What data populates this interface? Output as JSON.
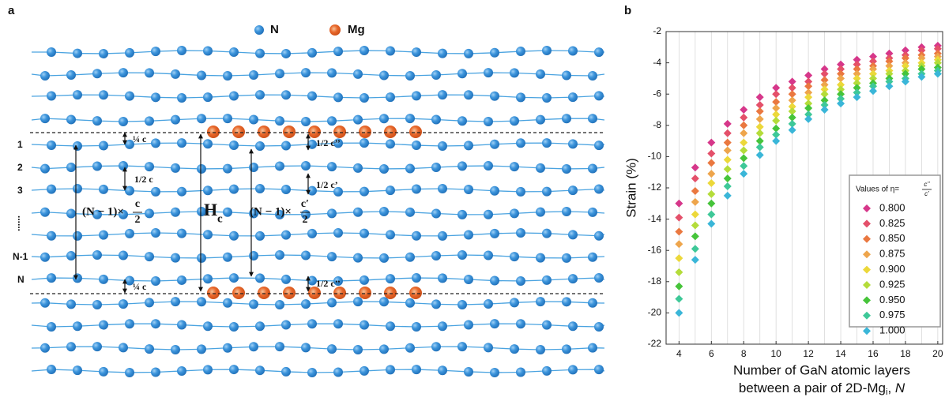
{
  "diagram": {
    "panel_label": "a",
    "legend": {
      "n": "N",
      "mg": "Mg"
    },
    "layer_labels": [
      "1",
      "2",
      "3",
      "......",
      "N-1",
      "N"
    ],
    "quarter_c_top": "¼ c",
    "quarter_c_bottom": "¼ c",
    "half_c": "1/2 c",
    "left_expr": {
      "prefix": "(N − 1)×",
      "numerator": "c",
      "denominator": "2"
    },
    "hc": {
      "main": "H",
      "sub": "c"
    },
    "right_expr": {
      "prefix": "(N − 1)×",
      "numerator": "c′",
      "denominator": "2"
    },
    "half_c2_top": "1/2 c’’",
    "half_c1": "1/2 c’",
    "half_c2_bottom": "1/2 c’’"
  },
  "chart_data": {
    "type": "scatter",
    "panel_label": "b",
    "y_label": "Strain (%)",
    "x_label": [
      "Number of GaN atomic layers",
      "between a pair of 2D-Mg",
      "i",
      ", ",
      "N"
    ],
    "x": [
      4,
      5,
      6,
      7,
      8,
      9,
      10,
      11,
      12,
      13,
      14,
      15,
      16,
      17,
      18,
      19,
      20
    ],
    "xlim": [
      3.2,
      20.3
    ],
    "ylim": [
      -22,
      -2
    ],
    "xticks": [
      4,
      6,
      8,
      10,
      12,
      14,
      16,
      18,
      20
    ],
    "yticks": [
      -22,
      -20,
      -18,
      -16,
      -14,
      -12,
      -10,
      -8,
      -6,
      -4,
      -2
    ],
    "grid": true,
    "legend": {
      "title": "Values of η=",
      "title_numerator": "c’’",
      "title_denominator": "c’",
      "position": "lower right"
    },
    "series": [
      {
        "name": "0.800",
        "color": "#d6378a",
        "values": [
          -13.0,
          -10.7,
          -9.1,
          -7.9,
          -7.0,
          -6.2,
          -5.6,
          -5.2,
          -4.8,
          -4.4,
          -4.1,
          -3.8,
          -3.6,
          -3.4,
          -3.2,
          -3.0,
          -2.9
        ]
      },
      {
        "name": "0.825",
        "color": "#e4506a",
        "values": [
          -13.9,
          -11.4,
          -9.8,
          -8.5,
          -7.5,
          -6.7,
          -6.0,
          -5.6,
          -5.2,
          -4.7,
          -4.4,
          -4.1,
          -3.9,
          -3.7,
          -3.5,
          -3.2,
          -3.1
        ]
      },
      {
        "name": "0.850",
        "color": "#ea7840",
        "values": [
          -14.8,
          -12.2,
          -10.4,
          -9.1,
          -8.0,
          -7.1,
          -6.5,
          -6.0,
          -5.5,
          -5.1,
          -4.7,
          -4.4,
          -4.2,
          -3.9,
          -3.7,
          -3.5,
          -3.4
        ]
      },
      {
        "name": "0.875",
        "color": "#eea54c",
        "values": [
          -15.6,
          -12.9,
          -11.1,
          -9.6,
          -8.5,
          -7.6,
          -6.9,
          -6.4,
          -5.9,
          -5.4,
          -5.0,
          -4.7,
          -4.4,
          -4.2,
          -4.0,
          -3.7,
          -3.6
        ]
      },
      {
        "name": "0.900",
        "color": "#ecd83a",
        "values": [
          -16.5,
          -13.7,
          -11.7,
          -10.2,
          -9.1,
          -8.1,
          -7.3,
          -6.8,
          -6.2,
          -5.7,
          -5.4,
          -5.0,
          -4.7,
          -4.5,
          -4.2,
          -4.0,
          -3.8
        ]
      },
      {
        "name": "0.925",
        "color": "#b4dc3a",
        "values": [
          -17.4,
          -14.4,
          -12.4,
          -10.8,
          -9.6,
          -8.5,
          -7.7,
          -7.1,
          -6.6,
          -6.0,
          -5.7,
          -5.3,
          -5.0,
          -4.7,
          -4.5,
          -4.2,
          -4.0
        ]
      },
      {
        "name": "0.950",
        "color": "#46c43a",
        "values": [
          -18.3,
          -15.1,
          -13.0,
          -11.4,
          -10.1,
          -9.0,
          -8.2,
          -7.5,
          -6.9,
          -6.4,
          -6.0,
          -5.6,
          -5.3,
          -5.0,
          -4.7,
          -4.4,
          -4.3
        ]
      },
      {
        "name": "0.975",
        "color": "#3ec898",
        "values": [
          -19.1,
          -15.9,
          -13.7,
          -11.9,
          -10.6,
          -9.4,
          -8.6,
          -7.9,
          -7.3,
          -6.7,
          -6.3,
          -5.9,
          -5.5,
          -5.2,
          -5.0,
          -4.7,
          -4.5
        ]
      },
      {
        "name": "1.000",
        "color": "#3ab6d8",
        "values": [
          -20.0,
          -16.6,
          -14.3,
          -12.5,
          -11.1,
          -9.9,
          -9.0,
          -8.3,
          -7.6,
          -7.0,
          -6.6,
          -6.2,
          -5.8,
          -5.5,
          -5.2,
          -4.9,
          -4.7
        ]
      }
    ]
  }
}
